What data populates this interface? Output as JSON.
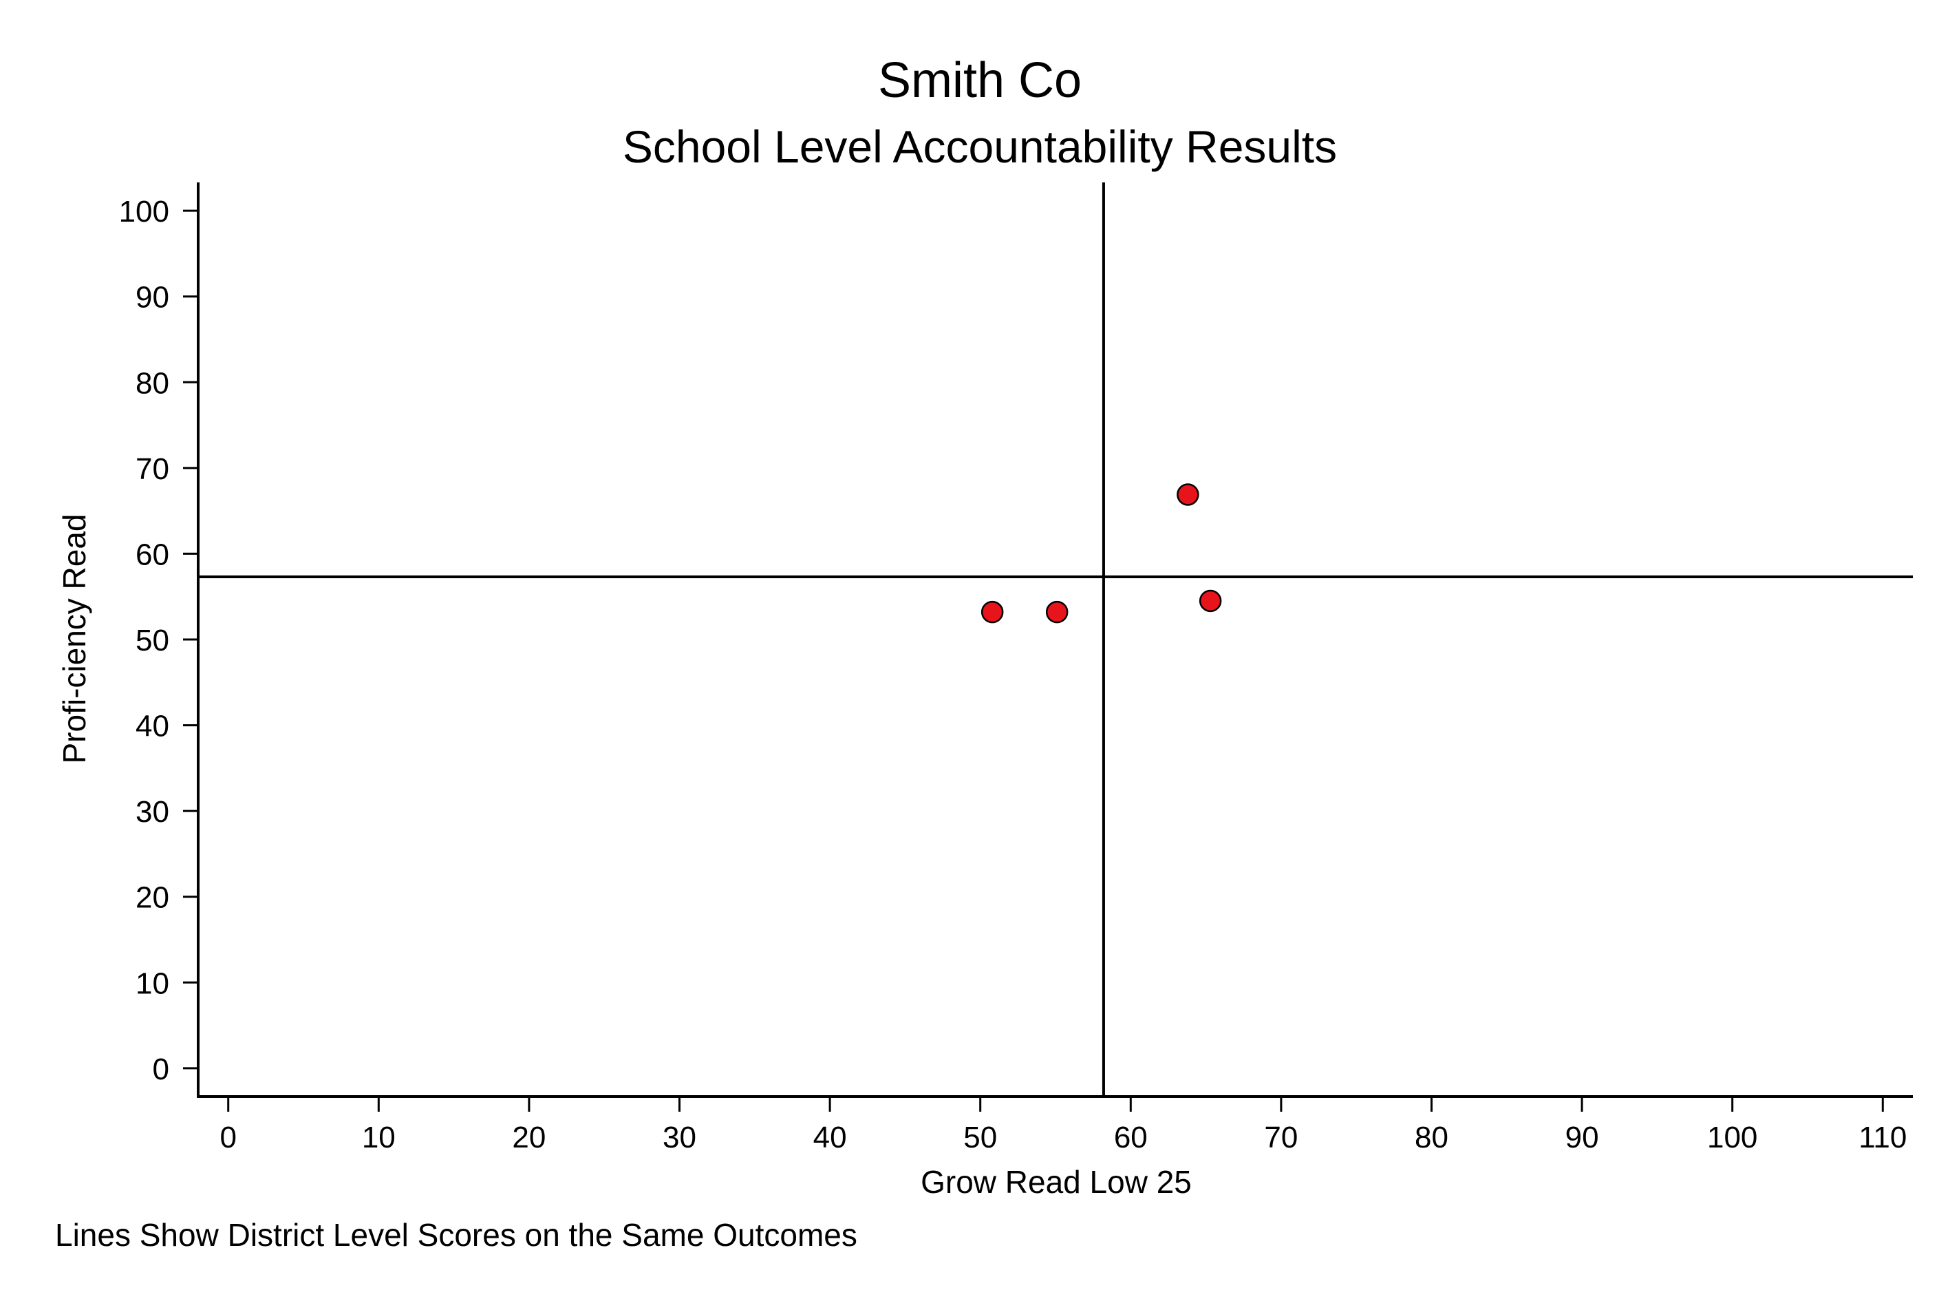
{
  "chart_data": {
    "type": "scatter",
    "title": "Smith Co",
    "subtitle": "School Level Accountability Results",
    "xlabel": "Grow Read Low 25",
    "ylabel": "Profi-ciency Read",
    "note": "Lines Show District Level Scores on the Same Outcomes",
    "xlim": [
      -2,
      112
    ],
    "ylim": [
      -3.3,
      103.3
    ],
    "x_ticks": [
      0,
      10,
      20,
      30,
      40,
      50,
      60,
      70,
      80,
      90,
      100,
      110
    ],
    "y_ticks": [
      0,
      10,
      20,
      30,
      40,
      50,
      60,
      70,
      80,
      90,
      100
    ],
    "grid": false,
    "reference_lines": {
      "x": 58.2,
      "y": 57.3
    },
    "marker_color": "#e8141c",
    "marker_edge_color": "#000000",
    "points": [
      {
        "x": 50.8,
        "y": 53.2
      },
      {
        "x": 55.1,
        "y": 53.2
      },
      {
        "x": 63.8,
        "y": 66.9
      },
      {
        "x": 65.3,
        "y": 54.5
      }
    ]
  }
}
